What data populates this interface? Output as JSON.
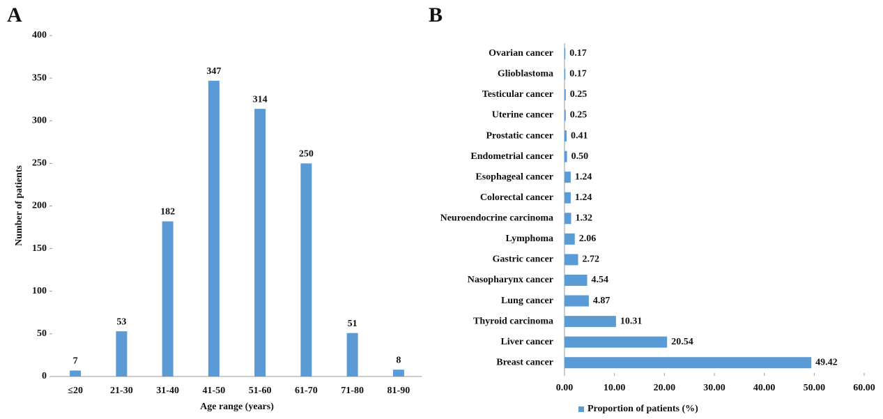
{
  "chart_data": [
    {
      "type": "bar",
      "panel": "A",
      "ylabel": "Number of patients",
      "xlabel": "Age range (years)",
      "categories": [
        "≤20",
        "21-30",
        "31-40",
        "41-50",
        "51-60",
        "61-70",
        "71-80",
        "81-90"
      ],
      "values": [
        7,
        53,
        182,
        347,
        314,
        250,
        51,
        8
      ],
      "color": "#5b9bd5",
      "ylim": [
        0,
        400
      ],
      "yticks": [
        0,
        50,
        100,
        150,
        200,
        250,
        300,
        350,
        400
      ]
    },
    {
      "type": "barh",
      "panel": "B",
      "categories": [
        "Ovarian cancer",
        "Glioblastoma",
        "Testicular cancer",
        "Uterine cancer",
        "Prostatic cancer",
        "Endometrial cancer",
        "Esophageal cancer",
        "Colorectal cancer",
        "Neuroendocrine carcinoma",
        "Lymphoma",
        "Gastric cancer",
        "Nasopharynx cancer",
        "Lung cancer",
        "Thyroid carcinoma",
        "Liver cancer",
        "Breast cancer"
      ],
      "series": [
        {
          "name": "Proportion of patients (%)",
          "color": "#5b9bd5",
          "values": [
            0.17,
            0.17,
            0.25,
            0.25,
            0.41,
            0.5,
            1.24,
            1.24,
            1.32,
            2.06,
            2.72,
            4.54,
            4.87,
            10.31,
            20.54,
            49.42
          ],
          "value_labels": [
            "0.17",
            "0.17",
            "0.25",
            "0.25",
            "0.41",
            "0.50",
            "1.24",
            "1.24",
            "1.32",
            "2.06",
            "2.72",
            "4.54",
            "4.87",
            "10.31",
            "20.54",
            "49.42"
          ]
        }
      ],
      "xlim": [
        0,
        60
      ],
      "xticks": [
        {
          "value": 0,
          "label": "0.00"
        },
        {
          "value": 10,
          "label": "10.00"
        },
        {
          "value": 20,
          "label": "20.00"
        },
        {
          "value": 30,
          "label": "30.00"
        },
        {
          "value": 40,
          "label": "40.00"
        },
        {
          "value": 50,
          "label": "50.00"
        },
        {
          "value": 60,
          "label": "60.00"
        }
      ],
      "legend": "bottom"
    }
  ]
}
